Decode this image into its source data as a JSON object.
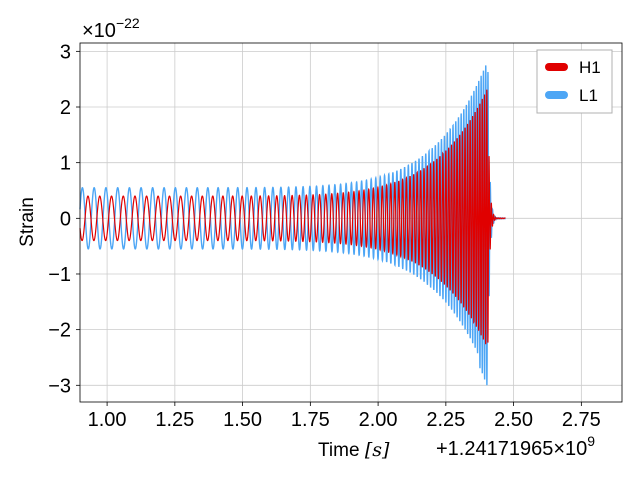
{
  "chart_data": {
    "type": "line",
    "title": "",
    "xlabel": "Time",
    "xlabel_unit": "[s]",
    "ylabel": "Strain",
    "x_offset_text": "+1.24171965",
    "x_offset_mult": "×10",
    "x_offset_exp": "9",
    "y_scale_prefix": "×10",
    "y_scale_exp": "−22",
    "xlim": [
      0.9,
      2.9
    ],
    "ylim": [
      -3.3,
      3.15
    ],
    "x_ticks": [
      1.0,
      1.25,
      1.5,
      1.75,
      2.0,
      2.25,
      2.5,
      2.75
    ],
    "x_tick_labels": [
      "1.00",
      "1.25",
      "1.50",
      "1.75",
      "2.00",
      "2.25",
      "2.50",
      "2.75"
    ],
    "y_ticks": [
      3,
      2,
      1,
      0,
      -1,
      -2,
      -3
    ],
    "y_tick_labels": [
      "3",
      "2",
      "1",
      "0",
      "−1",
      "−2",
      "−3"
    ],
    "grid": true,
    "legend_position": "top-right",
    "series": [
      {
        "name": "H1",
        "color": "#e00000",
        "start": 0.9,
        "merger": 2.405,
        "end": 2.47,
        "amplitude_start": 0.4,
        "amplitude_at_merger": 2.35,
        "cycles_per_second_start": 23,
        "cycles_per_second_end": 120
      },
      {
        "name": "L1",
        "color": "#4da6f5",
        "start": 0.9,
        "merger": 2.405,
        "end": 2.47,
        "amplitude_start": 0.55,
        "amplitude_at_merger": 2.85,
        "amplitude_min_at_merger": -3.05,
        "cycles_per_second_start": 23,
        "cycles_per_second_end": 120
      }
    ]
  }
}
